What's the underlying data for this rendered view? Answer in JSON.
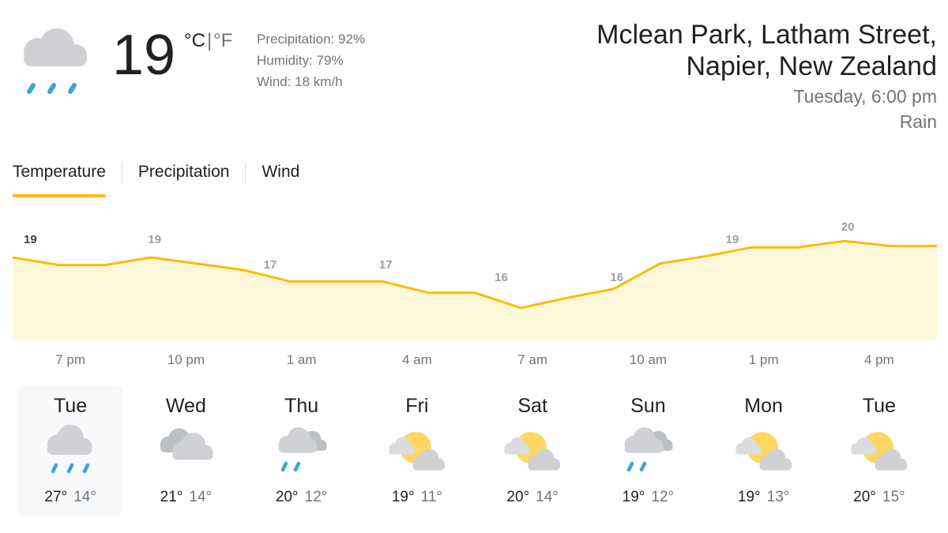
{
  "current": {
    "icon": "rain-cloud-icon",
    "temperature": "19",
    "unit_c": "°C",
    "unit_sep": "|",
    "unit_f": "°F",
    "precipitation": "Precipitation: 92%",
    "humidity": "Humidity: 79%",
    "wind": "Wind: 18 km/h"
  },
  "location": {
    "line1": "Mclean Park, Latham Street,",
    "line2": "Napier, New Zealand",
    "time": "Tuesday, 6:00 pm",
    "condition": "Rain"
  },
  "tabs": [
    {
      "label": "Temperature",
      "active": true
    },
    {
      "label": "Precipitation",
      "active": false
    },
    {
      "label": "Wind",
      "active": false
    }
  ],
  "colors": {
    "accent": "#fbbc04",
    "fill": "#fef7d9",
    "text_secondary": "#70757a",
    "rain": "#3aa6d8",
    "sun": "#fdd663",
    "cloud": "#cfd1d4"
  },
  "chart_data": {
    "type": "area",
    "x": [
      "7 pm",
      "10 pm",
      "1 am",
      "4 am",
      "7 am",
      "10 am",
      "1 pm",
      "4 pm"
    ],
    "labels": [
      "19",
      "19",
      "17",
      "17",
      "16",
      "16",
      "19",
      "20"
    ],
    "values": [
      19,
      19,
      17,
      17,
      16,
      16,
      19,
      20
    ],
    "line_values": [
      19,
      18.4,
      18.4,
      19,
      18.5,
      18,
      17.1,
      17.1,
      17.1,
      16.2,
      16.2,
      15,
      15.8,
      16.5,
      18.5,
      19.1,
      19.8,
      19.8,
      20.3,
      19.9,
      19.9
    ],
    "ylim": [
      12,
      22
    ]
  },
  "hours": [
    "7 pm",
    "10 pm",
    "1 am",
    "4 am",
    "7 am",
    "10 am",
    "1 pm",
    "4 pm"
  ],
  "days": [
    {
      "name": "Tue",
      "icon": "rain-cloud-icon",
      "high": "27°",
      "low": "14°",
      "selected": true
    },
    {
      "name": "Wed",
      "icon": "cloudy-icon",
      "high": "21°",
      "low": "14°",
      "selected": false
    },
    {
      "name": "Thu",
      "icon": "showers-icon",
      "high": "20°",
      "low": "12°",
      "selected": false
    },
    {
      "name": "Fri",
      "icon": "partly-cloudy-icon",
      "high": "19°",
      "low": "11°",
      "selected": false
    },
    {
      "name": "Sat",
      "icon": "partly-cloudy-icon",
      "high": "20°",
      "low": "14°",
      "selected": false
    },
    {
      "name": "Sun",
      "icon": "showers-icon",
      "high": "19°",
      "low": "12°",
      "selected": false
    },
    {
      "name": "Mon",
      "icon": "partly-cloudy-icon",
      "high": "19°",
      "low": "13°",
      "selected": false
    },
    {
      "name": "Tue",
      "icon": "partly-cloudy-icon",
      "high": "20°",
      "low": "15°",
      "selected": false
    }
  ]
}
